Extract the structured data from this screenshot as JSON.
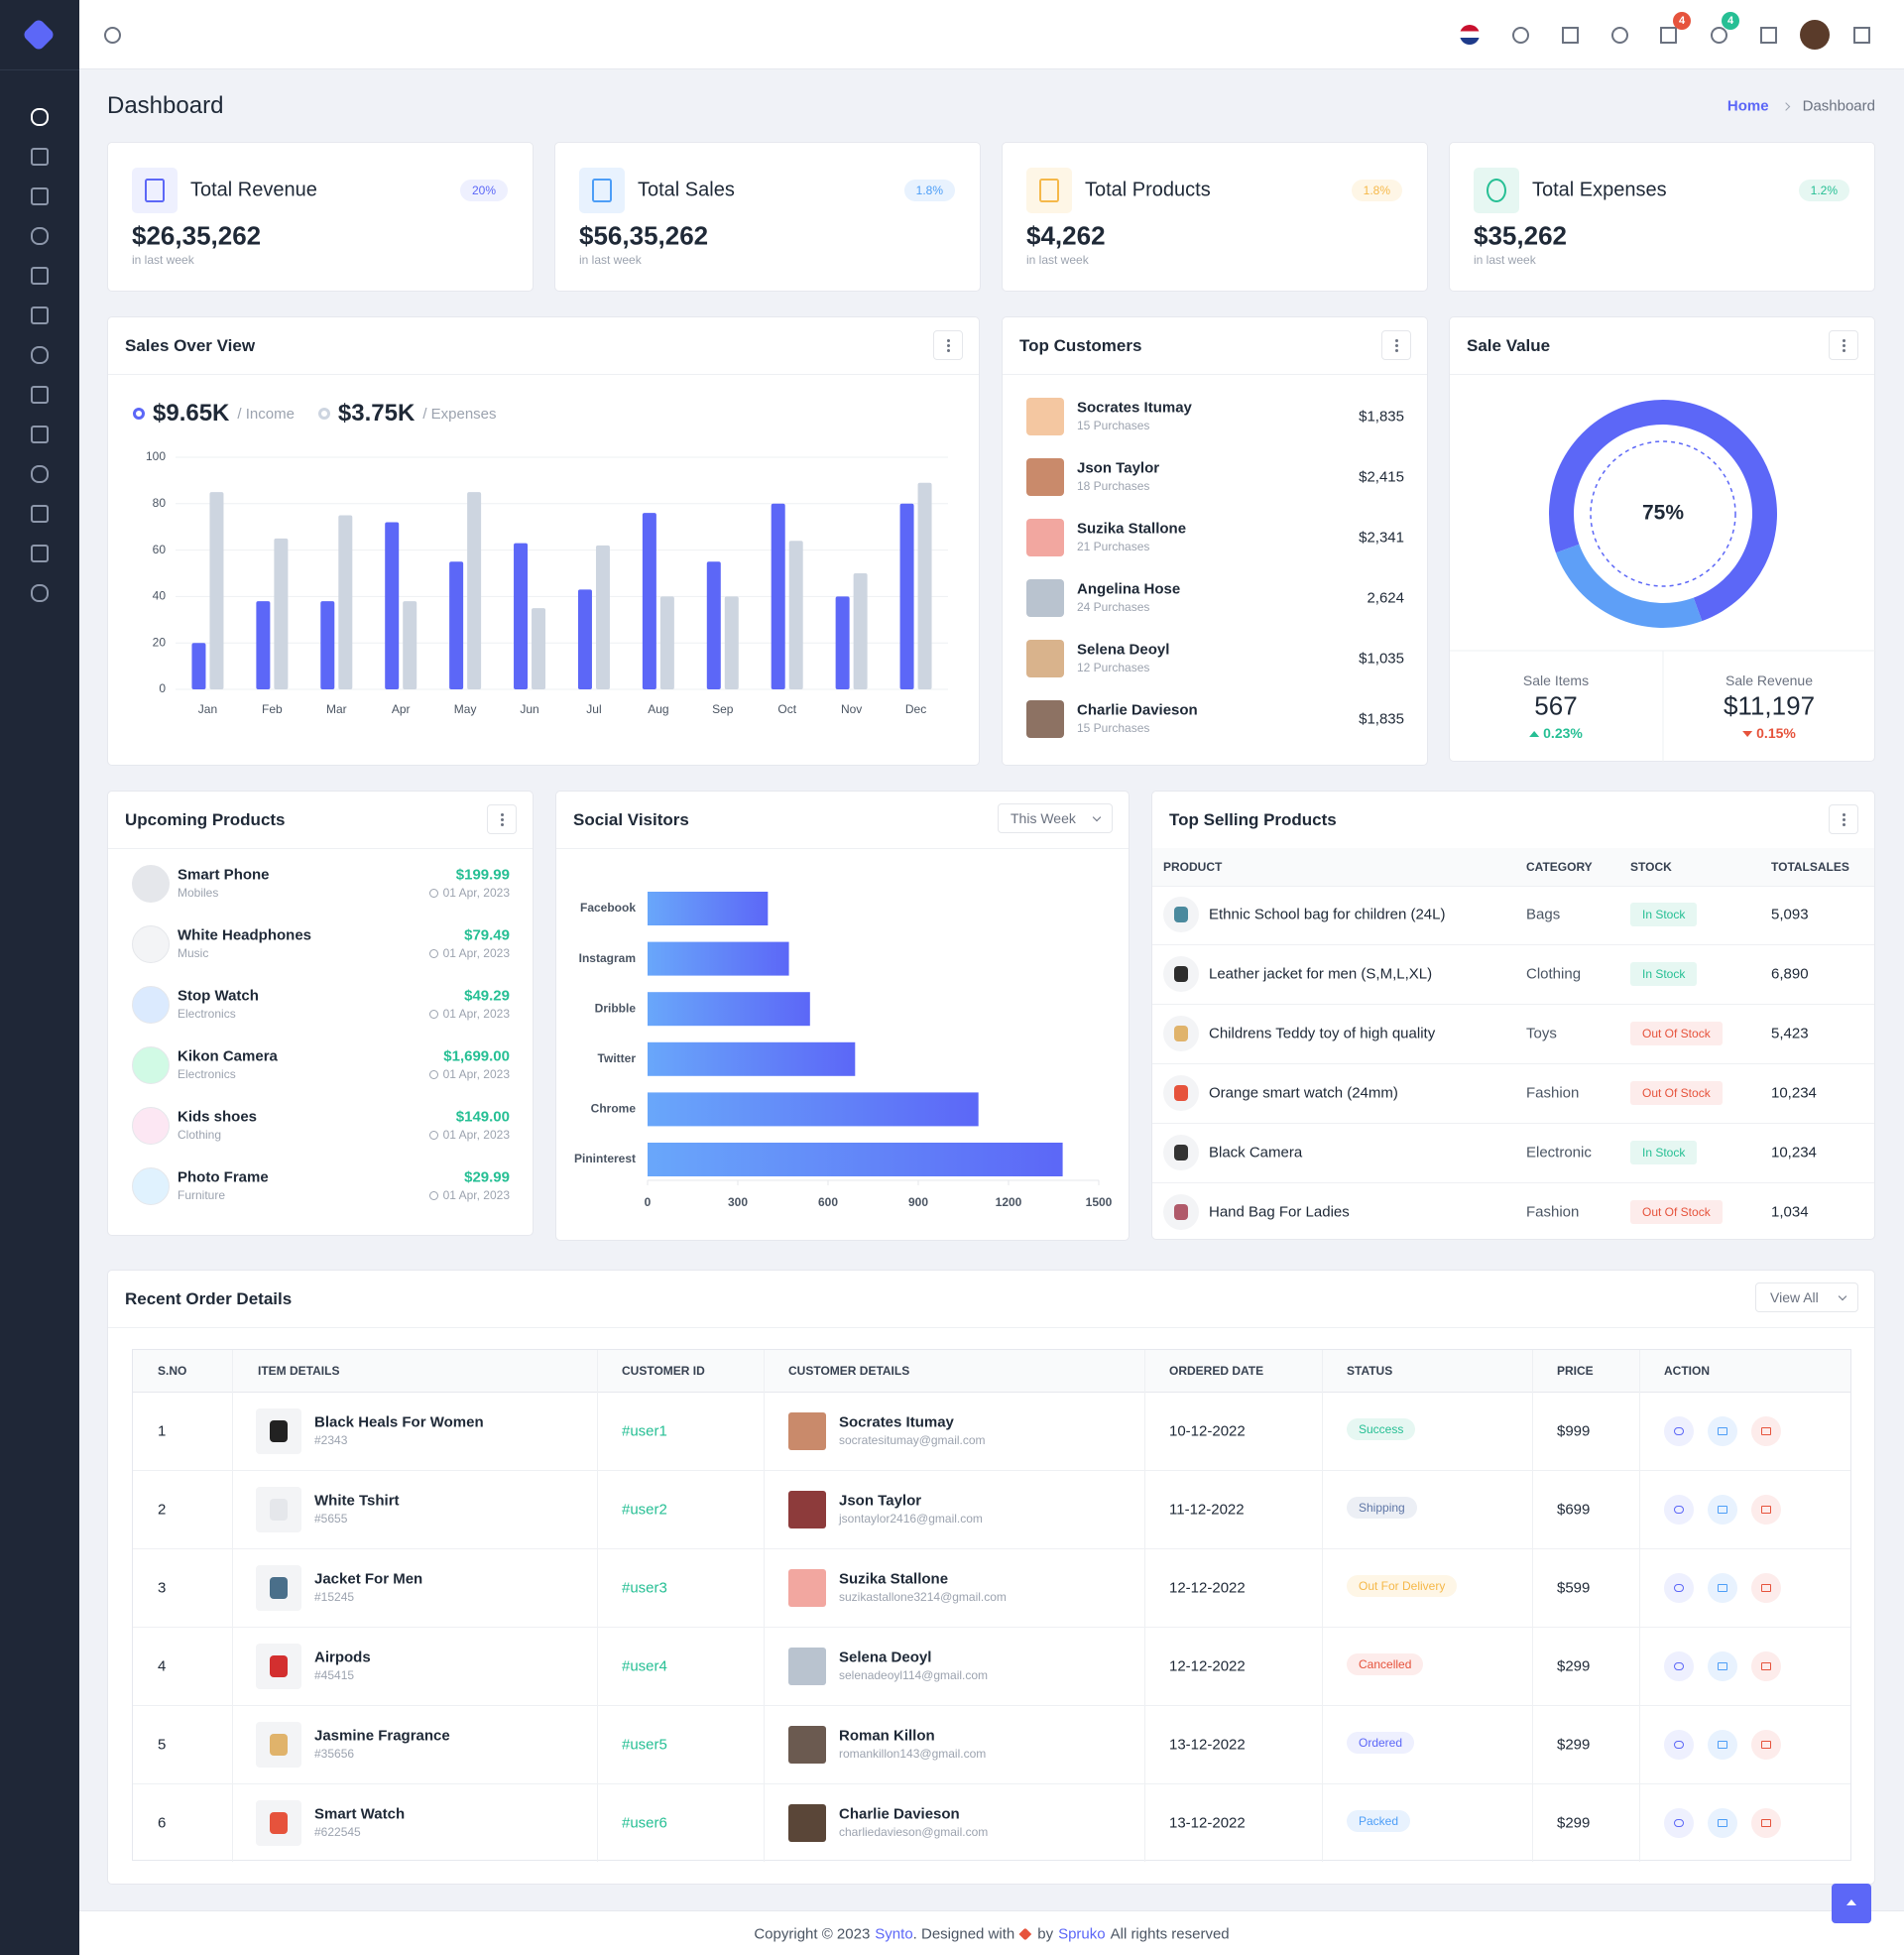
{
  "header": {
    "cart_count": "4",
    "bell_count": "4"
  },
  "page_title": "Dashboard",
  "breadcrumb": [
    "Home",
    "Dashboard"
  ],
  "stats": [
    {
      "title": "Total Revenue",
      "change": "20%",
      "value": "$26,35,262",
      "note": "in last week"
    },
    {
      "title": "Total Sales",
      "change": "1.8%",
      "value": "$56,35,262",
      "note": "in last week"
    },
    {
      "title": "Total Products",
      "change": "1.8%",
      "value": "$4,262",
      "note": "in last week"
    },
    {
      "title": "Total Expenses",
      "change": "1.2%",
      "value": "$35,262",
      "note": "in last week"
    }
  ],
  "top_customers": {
    "title": "Top Customers",
    "rows": [
      {
        "name": "Socrates Itumay",
        "purchases": "15 Purchases",
        "amount": "$1,835"
      },
      {
        "name": "Json Taylor",
        "purchases": "18 Purchases",
        "amount": "$2,415"
      },
      {
        "name": "Suzika Stallone",
        "purchases": "21 Purchases",
        "amount": "$2,341"
      },
      {
        "name": "Angelina Hose",
        "purchases": "24 Purchases",
        "amount": "2,624"
      },
      {
        "name": "Selena Deoyl",
        "purchases": "12 Purchases",
        "amount": "$1,035"
      },
      {
        "name": "Charlie Davieson",
        "purchases": "15 Purchases",
        "amount": "$1,835"
      }
    ]
  },
  "sale_value": {
    "items_label": "Sale Items",
    "items": "567",
    "items_change": "0.23%",
    "revenue_label": "Sale Revenue",
    "revenue": "$11,197",
    "revenue_change": "0.15%"
  },
  "upcoming_products": {
    "title": "Upcoming Products",
    "rows": [
      {
        "name": "Smart Phone",
        "category": "Mobiles",
        "price": "$199.99",
        "date": "01 Apr, 2023"
      },
      {
        "name": "White Headphones",
        "category": "Music",
        "price": "$79.49",
        "date": "01 Apr, 2023"
      },
      {
        "name": "Stop Watch",
        "category": "Electronics",
        "price": "$49.29",
        "date": "01 Apr, 2023"
      },
      {
        "name": "Kikon Camera",
        "category": "Electronics",
        "price": "$1,699.00",
        "date": "01 Apr, 2023"
      },
      {
        "name": "Kids shoes",
        "category": "Clothing",
        "price": "$149.00",
        "date": "01 Apr, 2023"
      },
      {
        "name": "Photo Frame",
        "category": "Furniture",
        "price": "$29.99",
        "date": "01 Apr, 2023"
      }
    ]
  },
  "top_selling": {
    "title": "Top Selling Products",
    "columns": [
      "PRODUCT",
      "CATEGORY",
      "STOCK",
      "TOTALSALES"
    ],
    "rows": [
      [
        "Ethnic School bag for children (24L)",
        "Bags",
        "In Stock",
        "5,093"
      ],
      [
        "Leather jacket for men (S,M,L,XL)",
        "Clothing",
        "In Stock",
        "6,890"
      ],
      [
        "Childrens Teddy toy of high quality",
        "Toys",
        "Out Of Stock",
        "5,423"
      ],
      [
        "Orange smart watch (24mm)",
        "Fashion",
        "Out Of Stock",
        "10,234"
      ],
      [
        "Black Camera",
        "Electronic",
        "In Stock",
        "10,234"
      ],
      [
        "Hand Bag For Ladies",
        "Fashion",
        "Out Of Stock",
        "1,034"
      ]
    ]
  },
  "recent_orders": {
    "title": "Recent Order Details",
    "button": "View All",
    "columns": [
      "S.NO",
      "ITEM DETAILS",
      "CUSTOMER ID",
      "CUSTOMER DETAILS",
      "ORDERED DATE",
      "STATUS",
      "PRICE",
      "ACTION"
    ],
    "rows": [
      {
        "sno": "1",
        "item": "Black Heals For Women",
        "item_id": "#2343",
        "customer_id": "#user1",
        "customer": "Socrates Itumay",
        "email": "socratesitumay@gmail.com",
        "date": "10-12-2022",
        "status": "Success",
        "price": "$999"
      },
      {
        "sno": "2",
        "item": "White Tshirt",
        "item_id": "#5655",
        "customer_id": "#user2",
        "customer": "Json Taylor",
        "email": "jsontaylor2416@gmail.com",
        "date": "11-12-2022",
        "status": "Shipping",
        "price": "$699"
      },
      {
        "sno": "3",
        "item": "Jacket For Men",
        "item_id": "#15245",
        "customer_id": "#user3",
        "customer": "Suzika Stallone",
        "email": "suzikastallone3214@gmail.com",
        "date": "12-12-2022",
        "status": "Out For Delivery",
        "price": "$599"
      },
      {
        "sno": "4",
        "item": "Airpods",
        "item_id": "#45415",
        "customer_id": "#user4",
        "customer": "Selena Deoyl",
        "email": "selenadeoyl114@gmail.com",
        "date": "12-12-2022",
        "status": "Cancelled",
        "price": "$299"
      },
      {
        "sno": "5",
        "item": "Jasmine Fragrance",
        "item_id": "#35656",
        "customer_id": "#user5",
        "customer": "Roman Killon",
        "email": "romankillon143@gmail.com",
        "date": "13-12-2022",
        "status": "Ordered",
        "price": "$299"
      },
      {
        "sno": "6",
        "item": "Smart Watch",
        "item_id": "#622545",
        "customer_id": "#user6",
        "customer": "Charlie Davieson",
        "email": "charliedavieson@gmail.com",
        "date": "13-12-2022",
        "status": "Packed",
        "price": "$299"
      }
    ]
  },
  "footer": {
    "copyright": "Copyright © 2023",
    "brand": "Synto",
    "designed": ". Designed with",
    "by": "by",
    "company": "Spruko",
    "rights": "All rights reserved"
  },
  "chart_data": [
    {
      "type": "bar",
      "title": "Sales Over View",
      "categories": [
        "Jan",
        "Feb",
        "Mar",
        "Apr",
        "May",
        "Jun",
        "Jul",
        "Aug",
        "Sep",
        "Oct",
        "Nov",
        "Dec"
      ],
      "series": [
        {
          "name": "/ Income",
          "total": "$9.65K",
          "color": "#5c67f7",
          "values": [
            20,
            38,
            38,
            72,
            55,
            63,
            43,
            76,
            55,
            80,
            40,
            80
          ]
        },
        {
          "name": "/ Expenses",
          "total": "$3.75K",
          "color": "#cdd5e0",
          "values": [
            85,
            65,
            75,
            38,
            85,
            35,
            62,
            40,
            40,
            64,
            50,
            89
          ]
        }
      ],
      "ylim": [
        0,
        100
      ],
      "yticks": [
        0,
        20,
        40,
        60,
        80,
        100
      ],
      "grid": true
    },
    {
      "type": "hbar",
      "title": "Social Visitors",
      "period": "This Week",
      "categories": [
        "Facebook",
        "Instagram",
        "Dribble",
        "Twitter",
        "Chrome",
        "Pininterest"
      ],
      "values": [
        400,
        470,
        540,
        690,
        1100,
        1380
      ],
      "colors": [
        "#69a7fa",
        "#5c67f7"
      ],
      "xlim": [
        0,
        1500
      ],
      "xticks": [
        0,
        300,
        600,
        900,
        1200,
        1500
      ],
      "grid": false
    },
    {
      "type": "donut",
      "title": "Sale Value",
      "values": [
        75,
        25
      ],
      "colors": [
        "#5c67f7",
        "#5e9ff7"
      ],
      "center_label": "75%"
    }
  ]
}
